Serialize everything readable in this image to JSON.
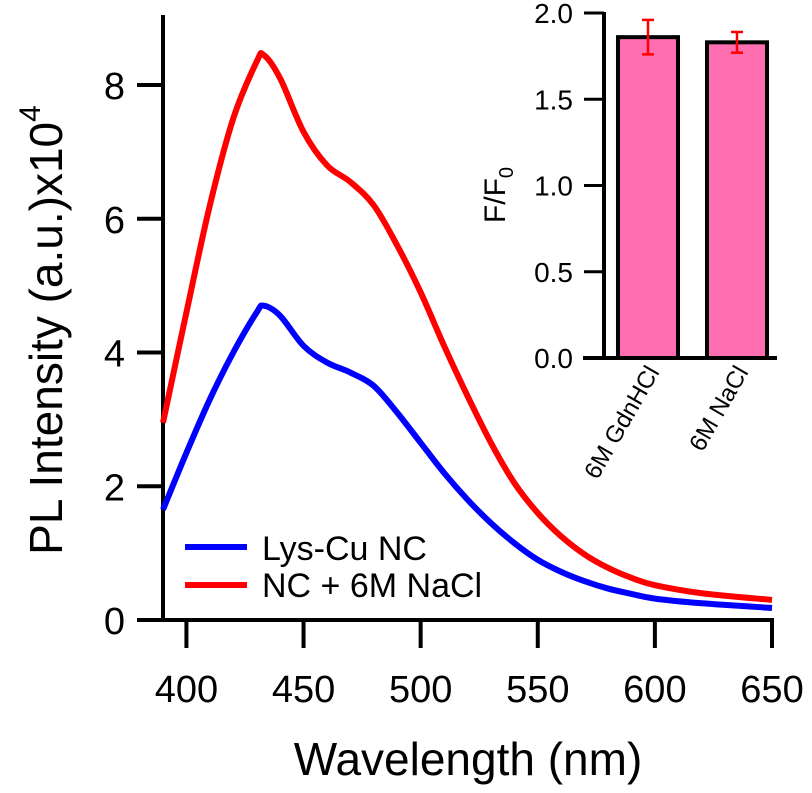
{
  "chart_data": [
    {
      "type": "line",
      "xlabel": "Wavelength (nm)",
      "ylabel": "PL Intensity (a.u.)x10",
      "ylabel_exponent": "4",
      "xlim": [
        390,
        650
      ],
      "ylim": [
        0,
        9
      ],
      "xticks": [
        "400",
        "450",
        "500",
        "550",
        "600",
        "650"
      ],
      "xtick_values": [
        400,
        450,
        500,
        550,
        600,
        650
      ],
      "yticks": [
        "0",
        "2",
        "4",
        "6",
        "8"
      ],
      "ytick_values": [
        0,
        2,
        4,
        6,
        8
      ],
      "legend_position": "bottom-left",
      "x": [
        390,
        400,
        410,
        420,
        430,
        433,
        440,
        450,
        460,
        470,
        480,
        490,
        500,
        510,
        520,
        530,
        540,
        550,
        560,
        570,
        580,
        590,
        600,
        620,
        650
      ],
      "series": [
        {
          "name": "Lys-Cu NC",
          "color": "#0000ff",
          "values": [
            1.65,
            2.5,
            3.3,
            4.0,
            4.6,
            4.7,
            4.55,
            4.1,
            3.85,
            3.7,
            3.5,
            3.1,
            2.65,
            2.2,
            1.8,
            1.45,
            1.15,
            0.9,
            0.72,
            0.58,
            0.47,
            0.39,
            0.32,
            0.25,
            0.18
          ]
        },
        {
          "name": "NC + 6M NaCl",
          "color": "#ff0000",
          "values": [
            2.95,
            4.6,
            6.2,
            7.5,
            8.35,
            8.45,
            8.1,
            7.3,
            6.8,
            6.55,
            6.2,
            5.6,
            4.9,
            4.1,
            3.35,
            2.65,
            2.05,
            1.6,
            1.25,
            0.98,
            0.78,
            0.63,
            0.52,
            0.4,
            0.3
          ]
        }
      ]
    },
    {
      "type": "bar",
      "ylabel": "F/F",
      "ylabel_subscript": "0",
      "ylim": [
        0,
        2.0
      ],
      "yticks": [
        "0.0",
        "0.5",
        "1.0",
        "1.5",
        "2.0"
      ],
      "ytick_values": [
        0,
        0.5,
        1.0,
        1.5,
        2.0
      ],
      "categories": [
        "6M GdnHCl",
        "6M NaCl"
      ],
      "values": [
        1.86,
        1.83
      ],
      "errors": [
        0.1,
        0.06
      ],
      "bar_color": "#ff6eb0",
      "error_color": "#ff0000"
    }
  ]
}
